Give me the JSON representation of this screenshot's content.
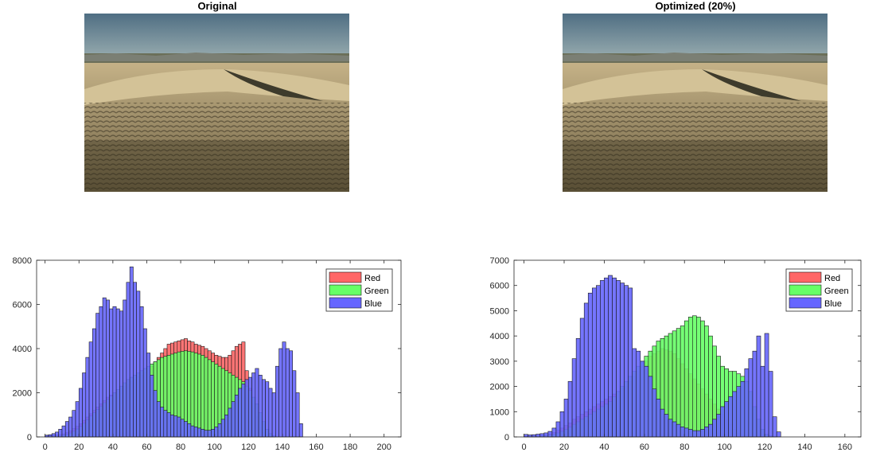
{
  "figure": {
    "left_title": "Original",
    "right_title": "Optimized (20%)"
  },
  "images": {
    "left": "desert-dunes-photo",
    "right": "desert-dunes-photo"
  },
  "colors": {
    "red": "#ff6666",
    "green": "#66ff66",
    "blue": "#6666ff",
    "edge": "#1a1a1a"
  },
  "chart_data": [
    {
      "type": "bar",
      "title": "",
      "xlabel": "",
      "ylabel": "",
      "xlim": [
        -5,
        210
      ],
      "ylim": [
        0,
        8000
      ],
      "xticks": [
        0,
        20,
        40,
        60,
        80,
        100,
        120,
        140,
        160,
        180,
        200
      ],
      "yticks": [
        0,
        2000,
        4000,
        6000,
        8000
      ],
      "bin_start": 0,
      "bin_width": 2,
      "legend": {
        "location": "top-right",
        "entries": [
          "Red",
          "Green",
          "Blue"
        ]
      },
      "series": [
        {
          "name": "Red",
          "color": "#ff6666",
          "values": [
            60,
            65,
            70,
            90,
            110,
            140,
            200,
            280,
            380,
            480,
            600,
            750,
            900,
            1050,
            1200,
            1350,
            1500,
            1650,
            1800,
            1900,
            2000,
            2100,
            2200,
            2300,
            2400,
            2500,
            2600,
            2700,
            2800,
            2900,
            3000,
            3200,
            3400,
            3600,
            3800,
            4000,
            4200,
            4250,
            4300,
            4350,
            4400,
            4450,
            4350,
            4300,
            4200,
            4150,
            4100,
            4000,
            3900,
            3800,
            3700,
            3650,
            3600,
            3600,
            3700,
            3900,
            4100,
            4200,
            4300,
            3000,
            2200,
            1500,
            900,
            450,
            200,
            80,
            30,
            10
          ]
        },
        {
          "name": "Green",
          "color": "#66ff66",
          "values": [
            40,
            45,
            50,
            60,
            70,
            90,
            120,
            180,
            260,
            360,
            480,
            620,
            780,
            950,
            1100,
            1250,
            1400,
            1550,
            1700,
            1850,
            2000,
            2150,
            2300,
            2450,
            2600,
            2700,
            2800,
            2900,
            3000,
            3100,
            3200,
            3300,
            3400,
            3500,
            3600,
            3650,
            3700,
            3750,
            3800,
            3850,
            3880,
            3900,
            3880,
            3850,
            3800,
            3750,
            3700,
            3600,
            3500,
            3400,
            3300,
            3200,
            3100,
            3000,
            2900,
            2800,
            2700,
            2600,
            2500,
            2300,
            2100,
            1800,
            1500,
            1100,
            700,
            350,
            150,
            50
          ]
        },
        {
          "name": "Blue",
          "color": "#6666ff",
          "values": [
            80,
            100,
            150,
            220,
            350,
            500,
            700,
            900,
            1200,
            1600,
            2200,
            2900,
            3600,
            4300,
            4900,
            5600,
            5900,
            6300,
            6200,
            5800,
            5900,
            5800,
            5700,
            6200,
            7000,
            7700,
            7000,
            6600,
            5900,
            4900,
            3800,
            2800,
            2100,
            1600,
            1350,
            1200,
            1100,
            1000,
            950,
            900,
            800,
            700,
            600,
            500,
            450,
            400,
            350,
            300,
            300,
            350,
            450,
            600,
            800,
            1000,
            1300,
            1600,
            1900,
            2200,
            2400,
            2600,
            2700,
            2900,
            3100,
            2800,
            2600,
            2500,
            2200,
            2000,
            3200,
            4000,
            4300,
            4000,
            3900,
            3000,
            2000,
            600
          ]
        }
      ]
    },
    {
      "type": "bar",
      "title": "",
      "xlabel": "",
      "ylabel": "",
      "xlim": [
        -5,
        168
      ],
      "ylim": [
        0,
        7000
      ],
      "xticks": [
        0,
        20,
        40,
        60,
        80,
        100,
        120,
        140,
        160
      ],
      "yticks": [
        0,
        1000,
        2000,
        3000,
        4000,
        5000,
        6000,
        7000
      ],
      "bin_start": 0,
      "bin_width": 2,
      "legend": {
        "location": "top-right",
        "entries": [
          "Red",
          "Green",
          "Blue"
        ]
      },
      "series": [
        {
          "name": "Red",
          "color": "#ff6666",
          "values": [
            20,
            25,
            30,
            40,
            60,
            80,
            120,
            180,
            260,
            350,
            450,
            550,
            700,
            800,
            900,
            1000,
            1100,
            1200,
            1300,
            1400,
            1500,
            1600,
            1700,
            1800,
            1900,
            2000,
            2200,
            2400,
            2600,
            2800,
            3000,
            3200,
            3300,
            3400,
            3500,
            3450,
            3400,
            3300,
            3100,
            2900,
            2700,
            2500,
            2300,
            2100,
            1900,
            1700,
            1500,
            1300,
            1100,
            900,
            700,
            500,
            300,
            150,
            80,
            40,
            20,
            10,
            5,
            0,
            0,
            0,
            0,
            0,
            0,
            0,
            0,
            0
          ]
        },
        {
          "name": "Green",
          "color": "#66ff66",
          "values": [
            30,
            30,
            35,
            40,
            50,
            60,
            80,
            110,
            160,
            220,
            300,
            400,
            500,
            600,
            700,
            800,
            900,
            1000,
            1100,
            1200,
            1300,
            1400,
            1600,
            1800,
            2000,
            2200,
            2400,
            2600,
            2800,
            3000,
            3200,
            3400,
            3600,
            3800,
            3900,
            4000,
            4100,
            4200,
            4300,
            4400,
            4600,
            4750,
            4800,
            4750,
            4600,
            4400,
            4000,
            3600,
            3200,
            2800,
            2700,
            2600,
            2600,
            2500,
            2400,
            2200,
            1800,
            1200,
            700,
            300,
            100,
            40,
            10,
            0,
            0,
            0,
            0,
            0
          ]
        },
        {
          "name": "Blue",
          "color": "#6666ff",
          "values": [
            100,
            80,
            90,
            110,
            130,
            160,
            220,
            350,
            600,
            1000,
            1500,
            2200,
            3100,
            3900,
            4700,
            5300,
            5700,
            5900,
            6000,
            6200,
            6300,
            6400,
            6300,
            6200,
            6100,
            6000,
            5900,
            3500,
            3400,
            3000,
            2800,
            2400,
            1900,
            1500,
            1100,
            900,
            700,
            600,
            500,
            400,
            350,
            300,
            250,
            250,
            300,
            400,
            500,
            700,
            900,
            1200,
            1400,
            1600,
            1800,
            2000,
            2200,
            2700,
            3100,
            3400,
            4000,
            2800,
            4100,
            2600,
            800,
            200
          ]
        }
      ]
    }
  ]
}
